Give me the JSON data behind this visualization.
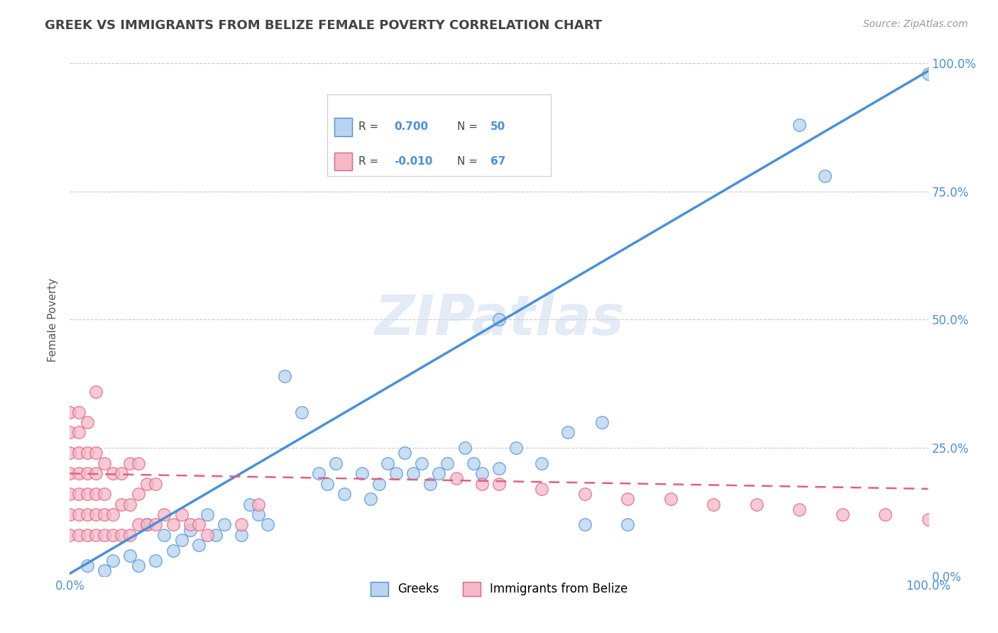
{
  "title": "GREEK VS IMMIGRANTS FROM BELIZE FEMALE POVERTY CORRELATION CHART",
  "source_text": "Source: ZipAtlas.com",
  "ylabel": "Female Poverty",
  "watermark": "ZIPatlas",
  "legend_entries": [
    {
      "label": "Greeks",
      "R": "0.700",
      "N": "50",
      "color": "#b8d4f0",
      "line_color": "#4a90d9"
    },
    {
      "label": "Immigrants from Belize",
      "R": "-0.010",
      "N": "67",
      "color": "#f5b8c8",
      "line_color": "#e06080"
    }
  ],
  "xlim": [
    0.0,
    1.0
  ],
  "ylim": [
    0.0,
    1.0
  ],
  "ytick_positions": [
    0.0,
    0.25,
    0.5,
    0.75,
    1.0
  ],
  "ytick_labels": [
    "0.0%",
    "25.0%",
    "50.0%",
    "75.0%",
    "100.0%"
  ],
  "xtick_positions": [
    0.0,
    1.0
  ],
  "xtick_labels": [
    "0.0%",
    "100.0%"
  ],
  "grid_color": "#c8c8d0",
  "background_color": "#ffffff",
  "title_color": "#444444",
  "tick_color": "#4a90d9",
  "greek_scatter_x": [
    0.02,
    0.04,
    0.05,
    0.07,
    0.08,
    0.09,
    0.1,
    0.11,
    0.12,
    0.13,
    0.14,
    0.15,
    0.16,
    0.17,
    0.18,
    0.2,
    0.21,
    0.22,
    0.23,
    0.25,
    0.27,
    0.29,
    0.3,
    0.31,
    0.32,
    0.34,
    0.35,
    0.36,
    0.37,
    0.38,
    0.39,
    0.4,
    0.41,
    0.42,
    0.43,
    0.44,
    0.46,
    0.47,
    0.48,
    0.5,
    0.52,
    0.55,
    0.58,
    0.6,
    0.62,
    0.65,
    0.5,
    0.85,
    0.88,
    1.0
  ],
  "greek_scatter_y": [
    0.02,
    0.01,
    0.03,
    0.04,
    0.02,
    0.1,
    0.03,
    0.08,
    0.05,
    0.07,
    0.09,
    0.06,
    0.12,
    0.08,
    0.1,
    0.08,
    0.14,
    0.12,
    0.1,
    0.39,
    0.32,
    0.2,
    0.18,
    0.22,
    0.16,
    0.2,
    0.15,
    0.18,
    0.22,
    0.2,
    0.24,
    0.2,
    0.22,
    0.18,
    0.2,
    0.22,
    0.25,
    0.22,
    0.2,
    0.21,
    0.25,
    0.22,
    0.28,
    0.1,
    0.3,
    0.1,
    0.5,
    0.88,
    0.78,
    0.98
  ],
  "belize_scatter_x": [
    0.0,
    0.0,
    0.0,
    0.0,
    0.0,
    0.0,
    0.0,
    0.01,
    0.01,
    0.01,
    0.01,
    0.01,
    0.01,
    0.01,
    0.02,
    0.02,
    0.02,
    0.02,
    0.02,
    0.02,
    0.03,
    0.03,
    0.03,
    0.03,
    0.03,
    0.03,
    0.04,
    0.04,
    0.04,
    0.04,
    0.05,
    0.05,
    0.05,
    0.06,
    0.06,
    0.06,
    0.07,
    0.07,
    0.07,
    0.08,
    0.08,
    0.08,
    0.09,
    0.09,
    0.1,
    0.1,
    0.11,
    0.12,
    0.13,
    0.14,
    0.15,
    0.16,
    0.2,
    0.22,
    0.45,
    0.48,
    0.5,
    0.55,
    0.6,
    0.65,
    0.7,
    0.75,
    0.8,
    0.85,
    0.9,
    0.95,
    1.0
  ],
  "belize_scatter_y": [
    0.08,
    0.12,
    0.16,
    0.2,
    0.24,
    0.28,
    0.32,
    0.08,
    0.12,
    0.16,
    0.2,
    0.24,
    0.28,
    0.32,
    0.08,
    0.12,
    0.16,
    0.2,
    0.24,
    0.3,
    0.08,
    0.12,
    0.16,
    0.2,
    0.24,
    0.36,
    0.08,
    0.12,
    0.16,
    0.22,
    0.08,
    0.12,
    0.2,
    0.08,
    0.14,
    0.2,
    0.08,
    0.14,
    0.22,
    0.1,
    0.16,
    0.22,
    0.1,
    0.18,
    0.1,
    0.18,
    0.12,
    0.1,
    0.12,
    0.1,
    0.1,
    0.08,
    0.1,
    0.14,
    0.19,
    0.18,
    0.18,
    0.17,
    0.16,
    0.15,
    0.15,
    0.14,
    0.14,
    0.13,
    0.12,
    0.12,
    0.11
  ],
  "greek_line_x": [
    0.0,
    1.0
  ],
  "greek_line_y": [
    0.005,
    0.985
  ],
  "belize_line_x": [
    0.0,
    1.0
  ],
  "belize_line_y": [
    0.2,
    0.17
  ]
}
